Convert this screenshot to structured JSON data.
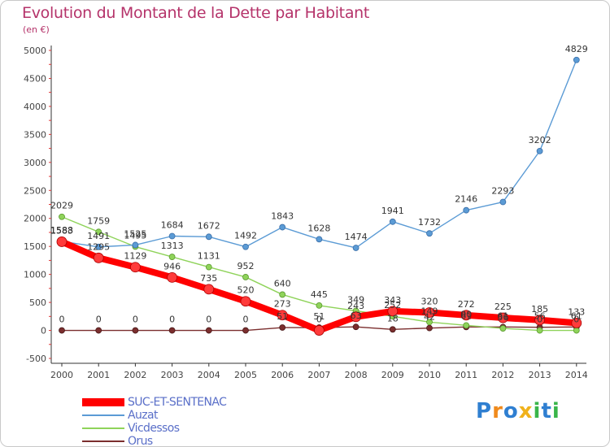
{
  "header": {
    "title": "Evolution du Montant de la Dette par Habitant",
    "subtitle": "(en €)"
  },
  "logo": {
    "text": "Proxiti",
    "letters": [
      {
        "ch": "P",
        "color": "#2f7fd1"
      },
      {
        "ch": "r",
        "color": "#f08a1c"
      },
      {
        "ch": "o",
        "color": "#2f7fd1"
      },
      {
        "ch": "x",
        "color": "#f0b21c"
      },
      {
        "ch": "i",
        "color": "#3ab54a"
      },
      {
        "ch": "t",
        "color": "#2f7fd1"
      },
      {
        "ch": "i",
        "color": "#3ab54a"
      }
    ]
  },
  "chart_data": {
    "type": "line",
    "x": [
      2000,
      2001,
      2002,
      2003,
      2004,
      2005,
      2006,
      2007,
      2008,
      2009,
      2010,
      2011,
      2012,
      2013,
      2014
    ],
    "ylim": [
      -500,
      5000
    ],
    "yticks": [
      -500,
      0,
      500,
      1000,
      1500,
      2000,
      2500,
      3000,
      3500,
      4000,
      4500,
      5000
    ],
    "grid": false,
    "legend_position": "bottom-left",
    "series": [
      {
        "name": "SUC-ET-SENTENAC",
        "color": "#ff0000",
        "values": [
          1583,
          1295,
          1129,
          946,
          735,
          520,
          273,
          0,
          243,
          343,
          320,
          272,
          225,
          185,
          133
        ]
      },
      {
        "name": "Auzat",
        "color": "#5b9bd5",
        "values": [
          1588,
          1491,
          1525,
          1684,
          1672,
          1492,
          1843,
          1628,
          1474,
          1941,
          1732,
          2146,
          2293,
          3202,
          4829
        ]
      },
      {
        "name": "Vicdessos",
        "color": "#8fd35a",
        "values": [
          2029,
          1759,
          1495,
          1313,
          1131,
          952,
          640,
          445,
          349,
          252,
          149,
          90,
          36,
          0,
          0
        ]
      },
      {
        "name": "Orus",
        "color": "#7b2e2e",
        "values": [
          0,
          0,
          0,
          0,
          0,
          0,
          51,
          51,
          63,
          18,
          42,
          61,
          61,
          56,
          61
        ]
      }
    ]
  }
}
